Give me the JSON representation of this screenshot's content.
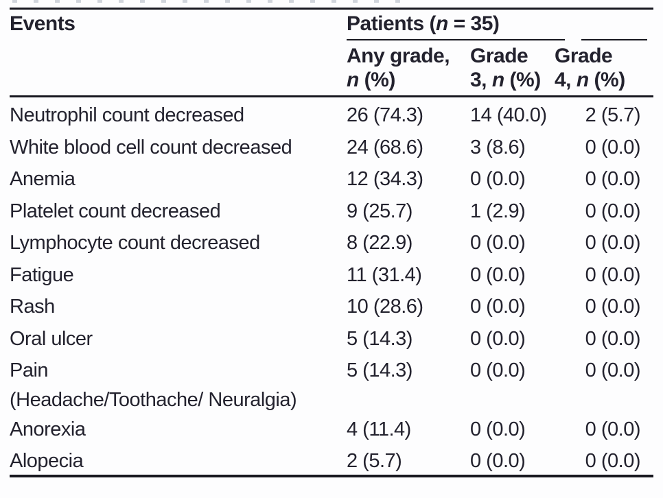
{
  "page": {
    "background": "#fdfdfe",
    "text_color": "#23222e",
    "rule_color": "#17171f",
    "remnant_color": "#c9ced6"
  },
  "table": {
    "header": {
      "events_label": "Events",
      "patients_spanner": [
        {
          "t": "Patients ("
        },
        {
          "t": "n",
          "i": true
        },
        {
          "t": " = 35)"
        }
      ],
      "columns": [
        {
          "id": "any-grade",
          "lines": [
            [
              {
                "t": "Any grade,"
              }
            ],
            [
              {
                "t": "n",
                "i": true
              },
              {
                "t": " (%)"
              }
            ]
          ]
        },
        {
          "id": "grade-3",
          "lines": [
            [
              {
                "t": "Grade"
              }
            ],
            [
              {
                "t": "3, "
              },
              {
                "t": "n",
                "i": true
              },
              {
                "t": " (%)"
              }
            ]
          ]
        },
        {
          "id": "grade-4",
          "lines": [
            [
              {
                "t": "Grade"
              }
            ],
            [
              {
                "t": "4, "
              },
              {
                "t": "n",
                "i": true
              },
              {
                "t": " (%)"
              }
            ]
          ]
        }
      ]
    },
    "rows": [
      {
        "event_lines": [
          "Neutrophil count decreased"
        ],
        "any_grade": "26 (74.3)",
        "grade3": "14 (40.0)",
        "grade4": "2 (5.7)"
      },
      {
        "event_lines": [
          "White blood cell count decreased"
        ],
        "any_grade": "24 (68.6)",
        "grade3": "3 (8.6)",
        "grade4": "0 (0.0)"
      },
      {
        "event_lines": [
          "Anemia"
        ],
        "any_grade": "12 (34.3)",
        "grade3": "0 (0.0)",
        "grade4": "0 (0.0)"
      },
      {
        "event_lines": [
          "Platelet count decreased"
        ],
        "any_grade": "9 (25.7)",
        "grade3": "1 (2.9)",
        "grade4": "0 (0.0)"
      },
      {
        "event_lines": [
          "Lymphocyte count decreased"
        ],
        "any_grade": "8 (22.9)",
        "grade3": "0 (0.0)",
        "grade4": "0 (0.0)"
      },
      {
        "event_lines": [
          "Fatigue"
        ],
        "any_grade": "11 (31.4)",
        "grade3": "0 (0.0)",
        "grade4": "0 (0.0)"
      },
      {
        "event_lines": [
          "Rash"
        ],
        "any_grade": "10 (28.6)",
        "grade3": "0 (0.0)",
        "grade4": "0 (0.0)"
      },
      {
        "event_lines": [
          "Oral ulcer"
        ],
        "any_grade": "5 (14.3)",
        "grade3": "0 (0.0)",
        "grade4": "0 (0.0)"
      },
      {
        "event_lines": [
          "Pain",
          "(Headache/Toothache/ Neuralgia)"
        ],
        "any_grade": "5 (14.3)",
        "grade3": "0 (0.0)",
        "grade4": "0 (0.0)"
      },
      {
        "event_lines": [
          "Anorexia"
        ],
        "any_grade": "4 (11.4)",
        "grade3": "0 (0.0)",
        "grade4": "0 (0.0)"
      },
      {
        "event_lines": [
          "Alopecia"
        ],
        "any_grade": "2 (5.7)",
        "grade3": "0 (0.0)",
        "grade4": "0 (0.0)"
      }
    ]
  }
}
